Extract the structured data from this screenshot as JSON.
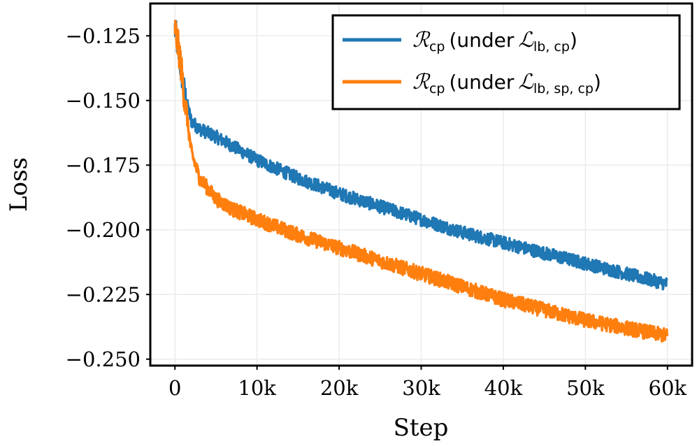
{
  "chart_data": {
    "type": "line",
    "xlabel": "Step",
    "ylabel": "Loss",
    "xlim": [
      -3000,
      63000
    ],
    "ylim": [
      -0.2525,
      -0.1125
    ],
    "xticks": [
      {
        "value": 0,
        "label": "0"
      },
      {
        "value": 10000,
        "label": "10k"
      },
      {
        "value": 20000,
        "label": "20k"
      },
      {
        "value": 30000,
        "label": "30k"
      },
      {
        "value": 40000,
        "label": "40k"
      },
      {
        "value": 50000,
        "label": "50k"
      },
      {
        "value": 60000,
        "label": "60k"
      }
    ],
    "yticks": [
      {
        "value": -0.125,
        "label": "−0.125"
      },
      {
        "value": -0.15,
        "label": "−0.150"
      },
      {
        "value": -0.175,
        "label": "−0.175"
      },
      {
        "value": -0.2,
        "label": "−0.200"
      },
      {
        "value": -0.225,
        "label": "−0.225"
      },
      {
        "value": -0.25,
        "label": "−0.250"
      }
    ],
    "grid": true,
    "legend_position": "top-right",
    "series": [
      {
        "name": "R_cp (under L_lb,cp)",
        "legend": {
          "script": "ℛ",
          "sub": "cp",
          "text": "(under",
          "script2": "ℒ",
          "sub2": "lb, cp",
          "close": ")"
        },
        "color": "#1f77b4",
        "noise": 0.0025,
        "x": [
          0,
          600,
          1200,
          2000,
          3000,
          5000,
          10000,
          15000,
          20000,
          25000,
          30000,
          35000,
          40000,
          45000,
          50000,
          55000,
          60000
        ],
        "y": [
          -0.122,
          -0.135,
          -0.148,
          -0.158,
          -0.161,
          -0.164,
          -0.173,
          -0.18,
          -0.186,
          -0.191,
          -0.196,
          -0.201,
          -0.205,
          -0.209,
          -0.213,
          -0.217,
          -0.221
        ]
      },
      {
        "name": "R_cp (under L_lb,sp,cp)",
        "legend": {
          "script": "ℛ",
          "sub": "cp",
          "text": "(under",
          "script2": "ℒ",
          "sub2": "lb, sp, cp",
          "close": ")"
        },
        "color": "#ff7f0e",
        "noise": 0.0028,
        "x": [
          0,
          600,
          1200,
          2000,
          3000,
          5000,
          7000,
          10000,
          15000,
          20000,
          25000,
          30000,
          35000,
          40000,
          45000,
          50000,
          55000,
          60000
        ],
        "y": [
          -0.122,
          -0.133,
          -0.15,
          -0.17,
          -0.18,
          -0.188,
          -0.192,
          -0.196,
          -0.202,
          -0.207,
          -0.212,
          -0.217,
          -0.222,
          -0.227,
          -0.231,
          -0.235,
          -0.238,
          -0.241
        ]
      }
    ]
  }
}
